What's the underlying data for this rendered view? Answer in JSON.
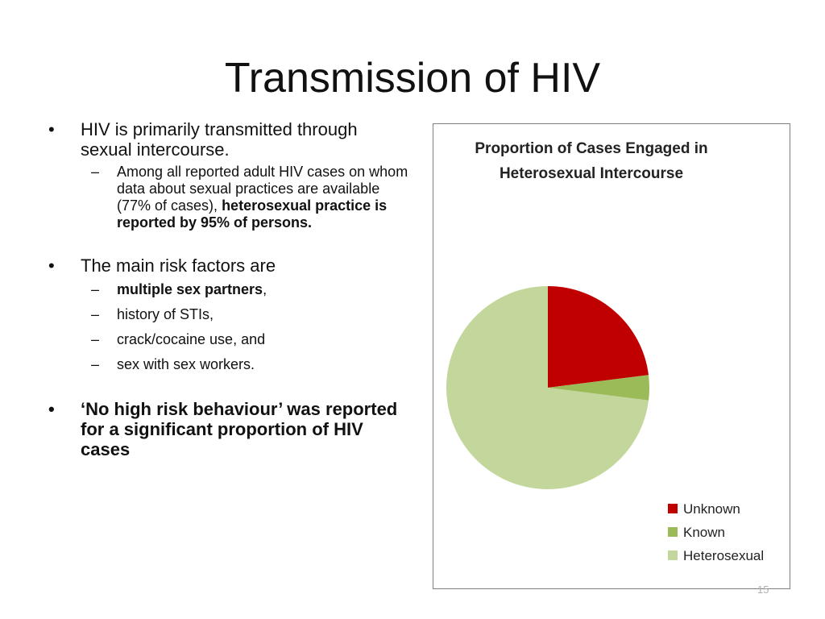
{
  "slide": {
    "title": "Transmission of HIV",
    "page_number": "15",
    "bullets": [
      {
        "runs": [
          {
            "text": "HIV is primarily transmitted through sexual intercourse.",
            "bold": false
          }
        ],
        "subs": [
          {
            "runs": [
              {
                "text": "Among all reported adult HIV cases on whom data about sexual practices are available (77% of cases), ",
                "bold": false
              },
              {
                "text": "heterosexual practice is reported by 95% of persons.",
                "bold": true
              }
            ]
          }
        ]
      },
      {
        "runs": [
          {
            "text": "The main risk factors are",
            "bold": false
          }
        ],
        "subs": [
          {
            "runs": [
              {
                "text": "multiple sex partners",
                "bold": true
              },
              {
                "text": ",",
                "bold": false
              }
            ]
          },
          {
            "runs": [
              {
                "text": "history of STIs,",
                "bold": false
              }
            ]
          },
          {
            "runs": [
              {
                "text": "crack/cocaine use, and",
                "bold": false
              }
            ]
          },
          {
            "runs": [
              {
                "text": "sex with sex workers.",
                "bold": false
              }
            ]
          }
        ]
      },
      {
        "runs": [
          {
            "text": "‘No high risk behaviour’ was reported for a significant proportion of HIV cases",
            "bold": true
          }
        ],
        "subs": []
      }
    ]
  },
  "chart_data": {
    "type": "pie",
    "title": "Proportion of Cases Engaged in Heterosexual Intercourse",
    "title_lines": [
      "Proportion of Cases Engaged in",
      "Heterosexual Intercourse"
    ],
    "start_angle_deg": 0,
    "direction": "clockwise",
    "legend_position": "bottom-right",
    "series": [
      {
        "name": "Unknown",
        "value": 23,
        "color": "#c00000"
      },
      {
        "name": "Known",
        "value": 4,
        "color": "#9bbb59"
      },
      {
        "name": "Heterosexual",
        "value": 73,
        "color": "#c3d69b"
      }
    ]
  }
}
